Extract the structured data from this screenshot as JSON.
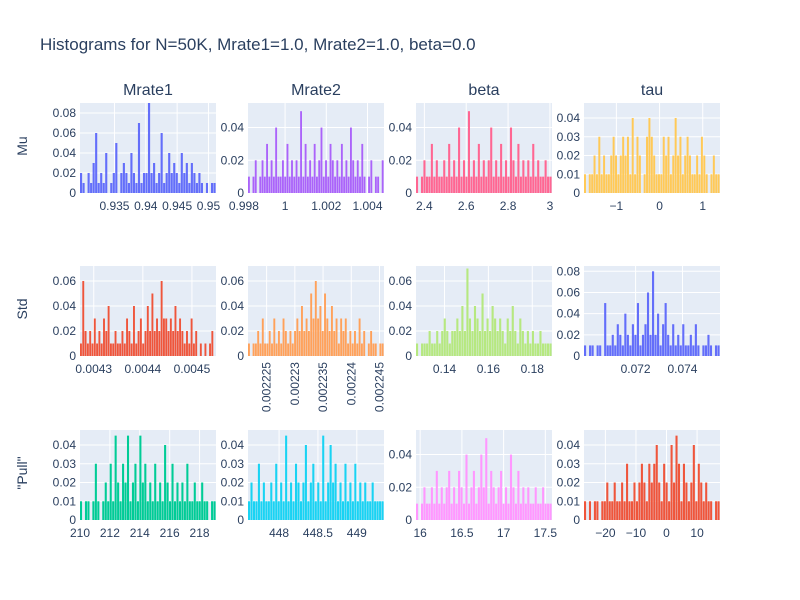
{
  "chart_data": {
    "type": "bar",
    "title": "Histograms for N=50K, Mrate1=1.0, Mrate2=1.0, beta=0.0",
    "column_titles": [
      "Mrate1",
      "Mrate2",
      "beta",
      "tau"
    ],
    "row_labels": [
      "Mu",
      "Std",
      "\"Pull\""
    ],
    "panels": [
      {
        "name": "mu-mrate1",
        "color": "#636efa",
        "xlim": [
          0.9295,
          0.9512
        ],
        "ylim": [
          0,
          0.09
        ],
        "xticks": [
          0.935,
          0.94,
          0.945,
          0.95
        ],
        "xtick_labels": [
          "0.935",
          "0.94",
          "0.945",
          "0.95"
        ],
        "yticks": [
          0,
          0.02,
          0.04,
          0.06,
          0.08
        ],
        "ytick_labels": [
          "0",
          "0.02",
          "0.04",
          "0.06",
          "0.08"
        ],
        "values": [
          0.02,
          0.01,
          0,
          0.02,
          0.01,
          0.03,
          0.06,
          0.01,
          0.02,
          0.01,
          0.04,
          0,
          0.01,
          0.02,
          0.05,
          0,
          0.02,
          0.03,
          0.02,
          0.01,
          0.04,
          0.02,
          0.01,
          0.07,
          0.01,
          0.02,
          0.02,
          0.09,
          0.02,
          0.03,
          0.01,
          0.02,
          0.06,
          0.01,
          0.02,
          0.04,
          0.02,
          0.03,
          0.02,
          0.01,
          0.04,
          0.02,
          0.03,
          0.01,
          0.03,
          0.02,
          0.01,
          0.02,
          0.01,
          0,
          0.01,
          0,
          0.01,
          0.01
        ]
      },
      {
        "name": "mu-mrate2",
        "color": "#ab63fa",
        "xlim": [
          0.9982,
          1.0048
        ],
        "ylim": [
          0,
          0.055
        ],
        "xticks": [
          0.998,
          1,
          1.002,
          1.004
        ],
        "xtick_labels": [
          "0.998",
          "1",
          "1.002",
          "1.004"
        ],
        "yticks": [
          0,
          0.02,
          0.04
        ],
        "ytick_labels": [
          "0",
          "0.02",
          "0.04"
        ],
        "values": [
          0.01,
          0,
          0.01,
          0.02,
          0,
          0.01,
          0.02,
          0.01,
          0.03,
          0.01,
          0.02,
          0.01,
          0.04,
          0.01,
          0.01,
          0.02,
          0.01,
          0.03,
          0.01,
          0.02,
          0.01,
          0.02,
          0.01,
          0.05,
          0.01,
          0.03,
          0.01,
          0.02,
          0.01,
          0.03,
          0.01,
          0.02,
          0.04,
          0.01,
          0.02,
          0.01,
          0.03,
          0.02,
          0.01,
          0.02,
          0.01,
          0.03,
          0.01,
          0.02,
          0.01,
          0.04,
          0.02,
          0.01,
          0.02,
          0.01,
          0.03,
          0.01,
          0,
          0.01,
          0.02,
          0,
          0.01,
          0.01,
          0,
          0.02
        ]
      },
      {
        "name": "mu-beta",
        "color": "#ff6692",
        "xlim": [
          2.36,
          3.01
        ],
        "ylim": [
          0,
          0.055
        ],
        "xticks": [
          2.4,
          2.6,
          2.8,
          3
        ],
        "xtick_labels": [
          "2.4",
          "2.6",
          "2.8",
          "3"
        ],
        "yticks": [
          0,
          0.02,
          0.04
        ],
        "ytick_labels": [
          "0",
          "0.02",
          "0.04"
        ],
        "values": [
          0.01,
          0,
          0.01,
          0.02,
          0.01,
          0.01,
          0.03,
          0.01,
          0.02,
          0.01,
          0.01,
          0.02,
          0.01,
          0.03,
          0.01,
          0.02,
          0.01,
          0.04,
          0.01,
          0.02,
          0.01,
          0.05,
          0.01,
          0.02,
          0.01,
          0.03,
          0.01,
          0.02,
          0.01,
          0.02,
          0.04,
          0.01,
          0.02,
          0.01,
          0.03,
          0.01,
          0.02,
          0.01,
          0.04,
          0.02,
          0.01,
          0.03,
          0.01,
          0.02,
          0.01,
          0.02,
          0.01,
          0.03,
          0.01,
          0.02,
          0.01,
          0.01,
          0.02,
          0.01,
          0.01
        ]
      },
      {
        "name": "mu-tau",
        "color": "#ffc957",
        "xlim": [
          -1.75,
          1.4
        ],
        "ylim": [
          0,
          0.048
        ],
        "xticks": [
          -1,
          0,
          1
        ],
        "xtick_labels": [
          "−1",
          "0",
          "1"
        ],
        "yticks": [
          0,
          0.01,
          0.02,
          0.03,
          0.04
        ],
        "ytick_labels": [
          "0",
          "0.01",
          "0.02",
          "0.03",
          "0.04"
        ],
        "values": [
          0.01,
          0,
          0.01,
          0.01,
          0.02,
          0.01,
          0.03,
          0.01,
          0.02,
          0.01,
          0.01,
          0.02,
          0.03,
          0.02,
          0.01,
          0.02,
          0.03,
          0.02,
          0.03,
          0.01,
          0.04,
          0.01,
          0.03,
          0.02,
          0,
          0.01,
          0.03,
          0.04,
          0.03,
          0.02,
          0.01,
          0.01,
          0.01,
          0.03,
          0.02,
          0.03,
          0.01,
          0.02,
          0.04,
          0.02,
          0.03,
          0.01,
          0.02,
          0.03,
          0.02,
          0.01,
          0.01,
          0.02,
          0.01,
          0.03,
          0.02,
          0.01,
          0,
          0.01,
          0.02,
          0.01,
          0.01
        ]
      },
      {
        "name": "std-mrate1",
        "color": "#ef553b",
        "xlim": [
          0.004272,
          0.004549
        ],
        "ylim": [
          0,
          0.072
        ],
        "xticks": [
          0.0043,
          0.0044,
          0.0045
        ],
        "xtick_labels": [
          "0.0043",
          "0.0044",
          "0.0045"
        ],
        "yticks": [
          0,
          0.02,
          0.04,
          0.06
        ],
        "ytick_labels": [
          "0",
          "0.02",
          "0.04",
          "0.06"
        ],
        "values": [
          0.01,
          0.06,
          0.02,
          0.01,
          0.02,
          0.01,
          0.03,
          0.01,
          0.02,
          0.01,
          0.03,
          0.02,
          0.04,
          0.01,
          0.01,
          0.02,
          0.01,
          0.01,
          0.02,
          0.01,
          0.03,
          0.02,
          0.01,
          0.04,
          0.01,
          0.02,
          0.03,
          0.01,
          0.02,
          0.04,
          0.02,
          0.05,
          0.02,
          0.03,
          0.02,
          0.06,
          0.03,
          0.03,
          0.02,
          0.03,
          0.02,
          0.04,
          0.02,
          0.03,
          0.02,
          0.01,
          0.02,
          0.01,
          0.03,
          0.01,
          0.02,
          0,
          0.01,
          0,
          0.01,
          0,
          0.01,
          0.02,
          0
        ]
      },
      {
        "name": "std-mrate2",
        "color": "#ffa15a",
        "xlim": [
          0.0022217,
          0.0022458
        ],
        "ylim": [
          0,
          0.072
        ],
        "xticks": [
          0.002225,
          0.00223,
          0.002235,
          0.00224,
          0.002245
        ],
        "xtick_labels": [
          "0.002225",
          "0.00223",
          "0.002235",
          "0.00224",
          "0.002245"
        ],
        "yticks": [
          0,
          0.02,
          0.04,
          0.06
        ],
        "ytick_labels": [
          "0",
          "0.02",
          "0.04",
          "0.06"
        ],
        "values": [
          0.01,
          0,
          0.01,
          0.01,
          0.02,
          0.01,
          0.03,
          0.01,
          0.01,
          0.02,
          0.01,
          0.03,
          0.01,
          0.02,
          0.01,
          0.03,
          0.02,
          0.01,
          0.02,
          0.01,
          0.02,
          0.03,
          0.02,
          0.04,
          0.02,
          0.03,
          0.02,
          0.05,
          0.03,
          0.06,
          0.03,
          0.04,
          0.02,
          0.05,
          0.03,
          0.02,
          0.04,
          0.02,
          0.03,
          0.01,
          0.03,
          0.02,
          0.03,
          0.01,
          0.02,
          0.01,
          0.02,
          0.01,
          0.03,
          0.01,
          0.02,
          0,
          0.01,
          0.02,
          0.01,
          0.01,
          0,
          0.01,
          0.01
        ]
      },
      {
        "name": "std-beta",
        "color": "#b6e880",
        "xlim": [
          0.127,
          0.189
        ],
        "ylim": [
          0,
          0.072
        ],
        "xticks": [
          0.14,
          0.16,
          0.18
        ],
        "xtick_labels": [
          "0.14",
          "0.16",
          "0.18"
        ],
        "yticks": [
          0,
          0.02,
          0.04,
          0.06
        ],
        "ytick_labels": [
          "0",
          "0.02",
          "0.04",
          "0.06"
        ],
        "values": [
          0.01,
          0,
          0.01,
          0.01,
          0.01,
          0.02,
          0.01,
          0.01,
          0.02,
          0.01,
          0.02,
          0.03,
          0.02,
          0.01,
          0.02,
          0.02,
          0.03,
          0.02,
          0.04,
          0.02,
          0.07,
          0.03,
          0.02,
          0.04,
          0.03,
          0.02,
          0.05,
          0.02,
          0.03,
          0.02,
          0.04,
          0.03,
          0.02,
          0.03,
          0.02,
          0.01,
          0.03,
          0.02,
          0.04,
          0.02,
          0.01,
          0.03,
          0.02,
          0.01,
          0.02,
          0.01,
          0.02,
          0.01,
          0.01,
          0.02,
          0.01,
          0.01,
          0.01,
          0.01
        ]
      },
      {
        "name": "std-tau",
        "color": "#636efa",
        "xlim": [
          0.0698,
          0.0756
        ],
        "ylim": [
          0,
          0.085
        ],
        "xticks": [
          0.072,
          0.074
        ],
        "xtick_labels": [
          "0.072",
          "0.074"
        ],
        "yticks": [
          0,
          0.02,
          0.04,
          0.06,
          0.08
        ],
        "ytick_labels": [
          "0",
          "0.02",
          "0.04",
          "0.06",
          "0.08"
        ],
        "values": [
          0.01,
          0,
          0.01,
          0.01,
          0,
          0.01,
          0.01,
          0,
          0.05,
          0.01,
          0.01,
          0.02,
          0.01,
          0.03,
          0.02,
          0.01,
          0.04,
          0.02,
          0.01,
          0.03,
          0.02,
          0.05,
          0.01,
          0.02,
          0.03,
          0.06,
          0.02,
          0.08,
          0.02,
          0.04,
          0.01,
          0.03,
          0.05,
          0.02,
          0.01,
          0.03,
          0.01,
          0.02,
          0.01,
          0.03,
          0.01,
          0.01,
          0.02,
          0.01,
          0.03,
          0.01,
          0,
          0.01,
          0.01,
          0.02,
          0.01,
          0,
          0.01,
          0.01
        ]
      },
      {
        "name": "pull-mrate1",
        "color": "#00cc96",
        "xlim": [
          210,
          219.1
        ],
        "ylim": [
          0,
          0.048
        ],
        "xticks": [
          210,
          212,
          214,
          216,
          218
        ],
        "xtick_labels": [
          "210",
          "212",
          "214",
          "216",
          "218"
        ],
        "yticks": [
          0,
          0.01,
          0.02,
          0.03,
          0.04
        ],
        "ytick_labels": [
          "0",
          "0.01",
          "0.02",
          "0.03",
          "0.04"
        ],
        "values": [
          0.01,
          0,
          0.01,
          0.01,
          0,
          0.01,
          0.03,
          0.01,
          0,
          0.01,
          0.02,
          0.01,
          0.03,
          0.01,
          0.045,
          0.02,
          0.01,
          0.03,
          0.02,
          0.045,
          0.01,
          0.02,
          0.03,
          0.01,
          0.045,
          0.02,
          0.03,
          0.01,
          0.02,
          0.01,
          0.03,
          0.01,
          0.02,
          0.01,
          0.04,
          0.02,
          0.01,
          0.03,
          0.01,
          0.02,
          0.01,
          0.02,
          0.01,
          0.03,
          0.01,
          0.01,
          0.02,
          0.01,
          0.01,
          0.02,
          0.01,
          0.01,
          0,
          0.01,
          0.01
        ]
      },
      {
        "name": "pull-mrate2",
        "color": "#19d3f3",
        "xlim": [
          447.6,
          449.35
        ],
        "ylim": [
          0,
          0.048
        ],
        "xticks": [
          448,
          448.5,
          449
        ],
        "xtick_labels": [
          "448",
          "448.5",
          "449"
        ],
        "yticks": [
          0,
          0.01,
          0.02,
          0.03,
          0.04
        ],
        "ytick_labels": [
          "0",
          "0.01",
          "0.02",
          "0.03",
          "0.04"
        ],
        "values": [
          0.01,
          0.02,
          0.01,
          0.01,
          0.03,
          0.01,
          0.02,
          0.01,
          0.01,
          0.02,
          0.01,
          0.03,
          0.01,
          0.02,
          0.01,
          0.045,
          0.01,
          0.02,
          0.01,
          0.03,
          0.02,
          0.01,
          0.02,
          0.04,
          0.01,
          0.02,
          0.03,
          0.01,
          0.02,
          0.01,
          0.045,
          0.01,
          0.02,
          0.04,
          0.02,
          0.03,
          0.01,
          0.02,
          0.01,
          0.03,
          0.01,
          0.02,
          0.01,
          0.03,
          0.01,
          0.02,
          0.01,
          0.02,
          0.01,
          0.01,
          0.02,
          0.01,
          0.01,
          0.01,
          0.01
        ]
      },
      {
        "name": "pull-beta",
        "color": "#ff97ff",
        "xlim": [
          15.95,
          17.58
        ],
        "ylim": [
          0,
          0.055
        ],
        "xticks": [
          16,
          16.5,
          17,
          17.5
        ],
        "xtick_labels": [
          "16",
          "16.5",
          "17",
          "17.5"
        ],
        "yticks": [
          0,
          0.02,
          0.04
        ],
        "ytick_labels": [
          "0",
          "0.02",
          "0.04"
        ],
        "values": [
          0.01,
          0,
          0.01,
          0.02,
          0.01,
          0.01,
          0.02,
          0.01,
          0.03,
          0.01,
          0.02,
          0.01,
          0.02,
          0.03,
          0.01,
          0.02,
          0.01,
          0.03,
          0.02,
          0.01,
          0.04,
          0.01,
          0.02,
          0.03,
          0.01,
          0.02,
          0.04,
          0.02,
          0.05,
          0.01,
          0.03,
          0.02,
          0.01,
          0.02,
          0.03,
          0.01,
          0.02,
          0.01,
          0.04,
          0.02,
          0.01,
          0.03,
          0.01,
          0.02,
          0.01,
          0.02,
          0.01,
          0.01,
          0.02,
          0.01,
          0.01,
          0.02,
          0.01,
          0.01,
          0.01
        ]
      },
      {
        "name": "pull-tau",
        "color": "#ef553b",
        "xlim": [
          -27,
          17.5
        ],
        "ylim": [
          0,
          0.048
        ],
        "xticks": [
          -20,
          -10,
          0,
          10
        ],
        "xtick_labels": [
          "−20",
          "−10",
          "0",
          "10"
        ],
        "yticks": [
          0,
          0.01,
          0.02,
          0.03,
          0.04
        ],
        "ytick_labels": [
          "0",
          "0.01",
          "0.02",
          "0.03",
          "0.04"
        ],
        "values": [
          0.01,
          0,
          0.01,
          0,
          0.01,
          0.01,
          0,
          0.01,
          0.01,
          0.02,
          0.01,
          0.01,
          0.02,
          0.01,
          0.01,
          0.02,
          0.01,
          0.03,
          0.01,
          0.01,
          0.02,
          0.01,
          0.02,
          0.03,
          0.02,
          0.01,
          0.03,
          0.02,
          0.03,
          0.04,
          0.02,
          0.01,
          0.03,
          0.02,
          0.01,
          0.04,
          0.02,
          0.045,
          0.03,
          0.01,
          0.03,
          0.02,
          0.01,
          0.02,
          0.04,
          0.01,
          0.03,
          0.02,
          0.01,
          0.02,
          0.01,
          0.01,
          0,
          0.01,
          0.01
        ]
      }
    ]
  }
}
